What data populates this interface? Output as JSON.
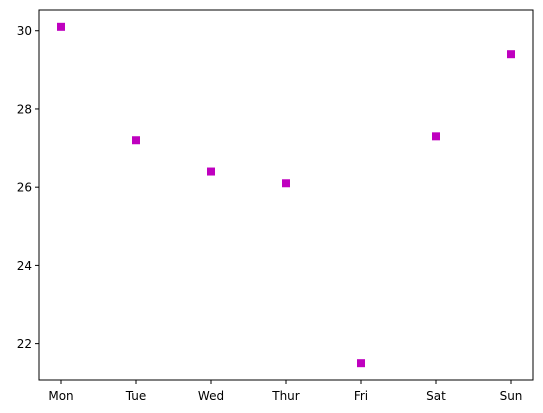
{
  "chart_data": {
    "type": "scatter",
    "title": "",
    "xlabel": "",
    "ylabel": "",
    "categories": [
      "Mon",
      "Tue",
      "Wed",
      "Thur",
      "Fri",
      "Sat",
      "Sun"
    ],
    "series": [
      {
        "values": [
          30.1,
          27.2,
          26.4,
          26.1,
          21.5,
          27.3,
          29.4
        ],
        "marker": "square",
        "color": "#bf00bf"
      }
    ],
    "ylim": [
      21.07,
      30.53
    ],
    "yticks": [
      22,
      24,
      26,
      28,
      30
    ],
    "grid": false,
    "legend": "none"
  }
}
